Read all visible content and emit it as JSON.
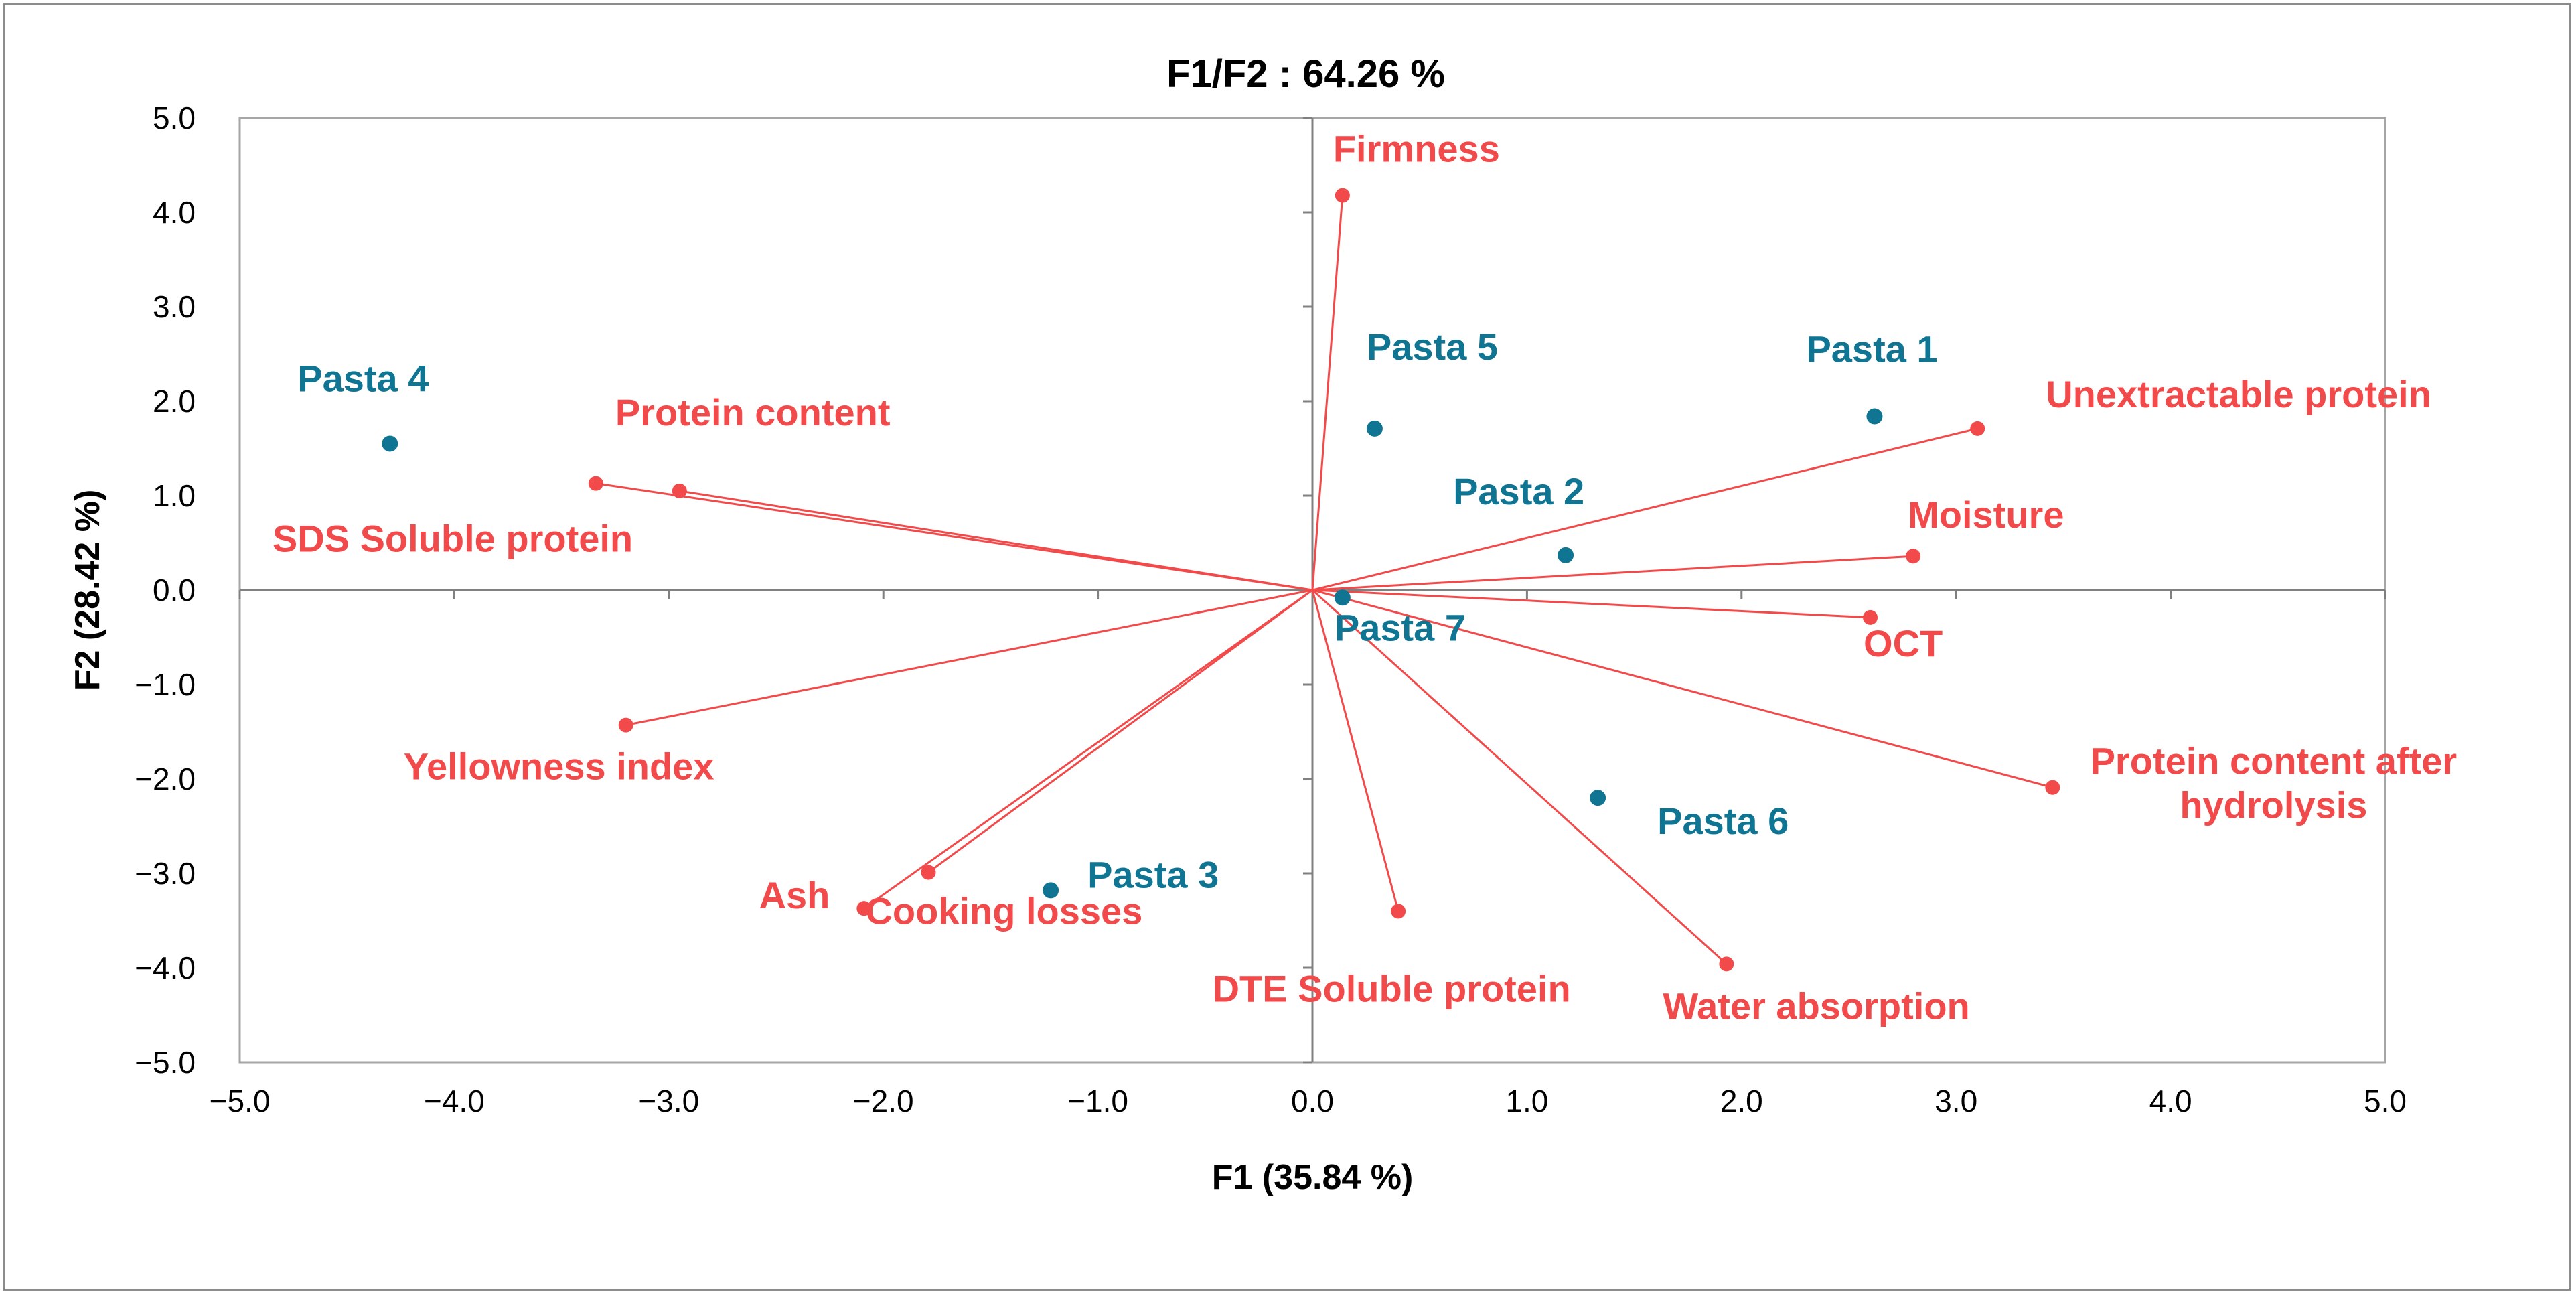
{
  "chart_data": {
    "type": "scatter",
    "subtype": "pca-biplot",
    "title": "F1/F2 : 64.26 %",
    "xlabel": "F1 (35.84 %)",
    "ylabel": "F2 (28.42 %)",
    "xlim": [
      -5.0,
      5.0
    ],
    "ylim": [
      -5.0,
      5.0
    ],
    "xticks": [
      -5.0,
      -4.0,
      -3.0,
      -2.0,
      -1.0,
      0.0,
      1.0,
      2.0,
      3.0,
      4.0,
      5.0
    ],
    "yticks": [
      -5.0,
      -4.0,
      -3.0,
      -2.0,
      -1.0,
      0.0,
      1.0,
      2.0,
      3.0,
      4.0,
      5.0
    ],
    "tick_labels_x": [
      "−5.0",
      "−4.0",
      "−3.0",
      "−2.0",
      "−1.0",
      "0.0",
      "1.0",
      "2.0",
      "3.0",
      "4.0",
      "5.0"
    ],
    "tick_labels_y": [
      "−5.0",
      "−4.0",
      "−3.0",
      "−2.0",
      "−1.0",
      "0.0",
      "1.0",
      "2.0",
      "3.0",
      "4.0",
      "5.0"
    ],
    "grid": false,
    "colors": {
      "observations": "#0f7593",
      "variables": "#f24a4a",
      "axis": "#808080"
    },
    "observations": [
      {
        "name": "Pasta 1",
        "x": 2.62,
        "y": 1.84,
        "label_lines": [
          "Pasta 1"
        ]
      },
      {
        "name": "Pasta 2",
        "x": 1.18,
        "y": 0.37,
        "label_lines": [
          "Pasta 2"
        ]
      },
      {
        "name": "Pasta 3",
        "x": -1.22,
        "y": -3.18,
        "label_lines": [
          "Pasta 3"
        ]
      },
      {
        "name": "Pasta 4",
        "x": -4.3,
        "y": 1.55,
        "label_lines": [
          "Pasta 4"
        ]
      },
      {
        "name": "Pasta 5",
        "x": 0.29,
        "y": 1.71,
        "label_lines": [
          "Pasta 5"
        ]
      },
      {
        "name": "Pasta 6",
        "x": 1.33,
        "y": -2.2,
        "label_lines": [
          "Pasta 6"
        ]
      },
      {
        "name": "Pasta 7",
        "x": 0.14,
        "y": -0.08,
        "label_lines": [
          "Pasta 7"
        ]
      }
    ],
    "variables": [
      {
        "name": "Firmness",
        "x": 0.14,
        "y": 4.18,
        "label_lines": [
          "Firmness"
        ]
      },
      {
        "name": "Unextractable protein",
        "x": 3.1,
        "y": 1.71,
        "label_lines": [
          "Unextractable protein"
        ]
      },
      {
        "name": "Moisture",
        "x": 2.8,
        "y": 0.36,
        "label_lines": [
          "Moisture"
        ]
      },
      {
        "name": "OCT",
        "x": 2.6,
        "y": -0.29,
        "label_lines": [
          "OCT"
        ]
      },
      {
        "name": "Protein content after hydrolysis",
        "x": 3.45,
        "y": -2.09,
        "label_lines": [
          "Protein content after",
          "hydrolysis"
        ]
      },
      {
        "name": "Water absorption",
        "x": 1.93,
        "y": -3.96,
        "label_lines": [
          "Water absorption"
        ]
      },
      {
        "name": "DTE Soluble protein",
        "x": 0.4,
        "y": -3.4,
        "label_lines": [
          "DTE Soluble protein"
        ]
      },
      {
        "name": "Cooking losses",
        "x": -1.79,
        "y": -2.99,
        "label_lines": [
          "Cooking losses"
        ]
      },
      {
        "name": "Ash",
        "x": -2.09,
        "y": -3.37,
        "label_lines": [
          "Ash"
        ]
      },
      {
        "name": "Yellowness index",
        "x": -3.2,
        "y": -1.43,
        "label_lines": [
          "Yellowness index"
        ]
      },
      {
        "name": "Protein content",
        "x": -2.95,
        "y": 1.05,
        "label_lines": [
          "Protein content"
        ]
      },
      {
        "name": "SDS Soluble protein",
        "x": -3.34,
        "y": 1.13,
        "label_lines": [
          "SDS Soluble protein"
        ]
      }
    ]
  }
}
